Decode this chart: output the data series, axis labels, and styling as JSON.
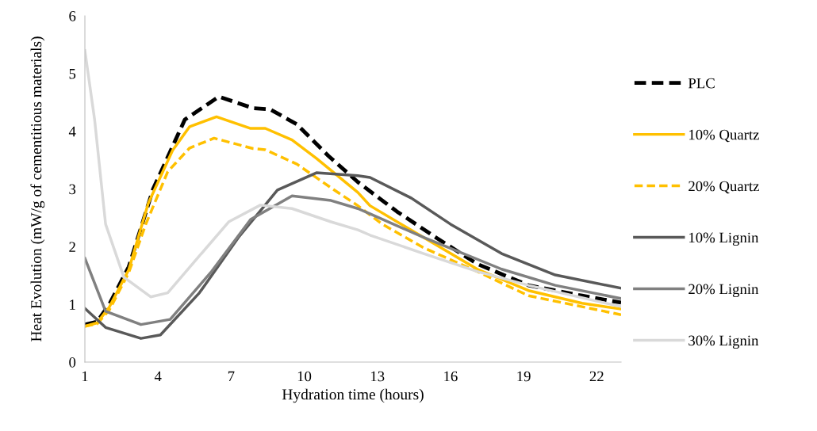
{
  "chart_data": {
    "type": "line",
    "xlabel": "Hydration time (hours)",
    "ylabel": "Heat Evolution (mW/g of cementitious materials)",
    "xlim": [
      1,
      23
    ],
    "xticks": [
      1,
      4,
      7,
      10,
      13,
      16,
      19,
      22
    ],
    "ylim": [
      0,
      6
    ],
    "yticks": [
      0,
      1,
      2,
      3,
      4,
      5,
      6
    ],
    "grid": false,
    "legend": "right",
    "marker": "none",
    "series": [
      {
        "name": "PLC",
        "color": "#000000",
        "line_style": "dashed",
        "x": [
          1,
          1.5,
          2,
          2.8,
          3.8,
          5.1,
          6.5,
          7.9,
          8.6,
          9.7,
          11.0,
          12.2,
          13.8,
          15.4,
          17.1,
          19.2,
          21.4,
          23
        ],
        "values": [
          0.65,
          0.7,
          1.0,
          1.65,
          3.0,
          4.2,
          4.6,
          4.4,
          4.38,
          4.12,
          3.57,
          3.12,
          2.61,
          2.16,
          1.7,
          1.33,
          1.15,
          1.03
        ]
      },
      {
        "name": "10% Quartz",
        "color": "#ffc000",
        "line_style": "solid",
        "x": [
          1,
          1.5,
          2,
          2.8,
          3.6,
          4.6,
          5.3,
          6.4,
          7.8,
          8.4,
          9.5,
          10.5,
          12.2,
          12.7,
          14.9,
          17.1,
          19.2,
          21.4,
          23
        ],
        "values": [
          0.62,
          0.68,
          0.95,
          1.6,
          2.75,
          3.67,
          4.08,
          4.25,
          4.05,
          4.05,
          3.85,
          3.53,
          2.94,
          2.71,
          2.16,
          1.61,
          1.24,
          1.02,
          0.92
        ]
      },
      {
        "name": "20% Quartz",
        "color": "#ffc000",
        "line_style": "dashed",
        "x": [
          1,
          1.5,
          2,
          2.8,
          3.5,
          4.4,
          5.3,
          6.3,
          7.9,
          8.4,
          9.7,
          11.1,
          12.2,
          13.2,
          14.9,
          17.1,
          19.2,
          21.4,
          23
        ],
        "values": [
          0.62,
          0.66,
          0.9,
          1.55,
          2.39,
          3.3,
          3.71,
          3.88,
          3.7,
          3.68,
          3.43,
          3.02,
          2.71,
          2.39,
          1.98,
          1.57,
          1.15,
          0.96,
          0.82
        ]
      },
      {
        "name": "10% Lignin",
        "color": "#595959",
        "line_style": "solid",
        "x": [
          1,
          1.85,
          3.3,
          4.1,
          5.7,
          7.3,
          8.9,
          10.5,
          12.2,
          12.7,
          14.4,
          16.0,
          18.1,
          20.3,
          23
        ],
        "values": [
          0.93,
          0.6,
          0.41,
          0.47,
          1.2,
          2.16,
          2.98,
          3.28,
          3.23,
          3.2,
          2.84,
          2.39,
          1.88,
          1.51,
          1.28
        ]
      },
      {
        "name": "20% Lignin",
        "color": "#808080",
        "line_style": "solid",
        "x": [
          1,
          1.85,
          3.3,
          4.5,
          6.2,
          7.8,
          9.5,
          11.1,
          12.2,
          12.7,
          14.9,
          18.1,
          20.3,
          23
        ],
        "values": [
          1.8,
          0.88,
          0.65,
          0.74,
          1.57,
          2.47,
          2.88,
          2.8,
          2.66,
          2.57,
          2.16,
          1.61,
          1.33,
          1.1
        ]
      },
      {
        "name": "30% Lignin",
        "color": "#d9d9d9",
        "line_style": "solid",
        "x": [
          1,
          1.4,
          1.85,
          2.6,
          3.7,
          4.4,
          5.7,
          6.9,
          8.2,
          9.5,
          11.1,
          12.2,
          12.7,
          14.9,
          17.1,
          19.2,
          23
        ],
        "values": [
          5.4,
          4.2,
          2.39,
          1.47,
          1.13,
          1.2,
          1.84,
          2.43,
          2.72,
          2.66,
          2.43,
          2.29,
          2.2,
          1.88,
          1.57,
          1.33,
          0.96
        ]
      }
    ]
  }
}
